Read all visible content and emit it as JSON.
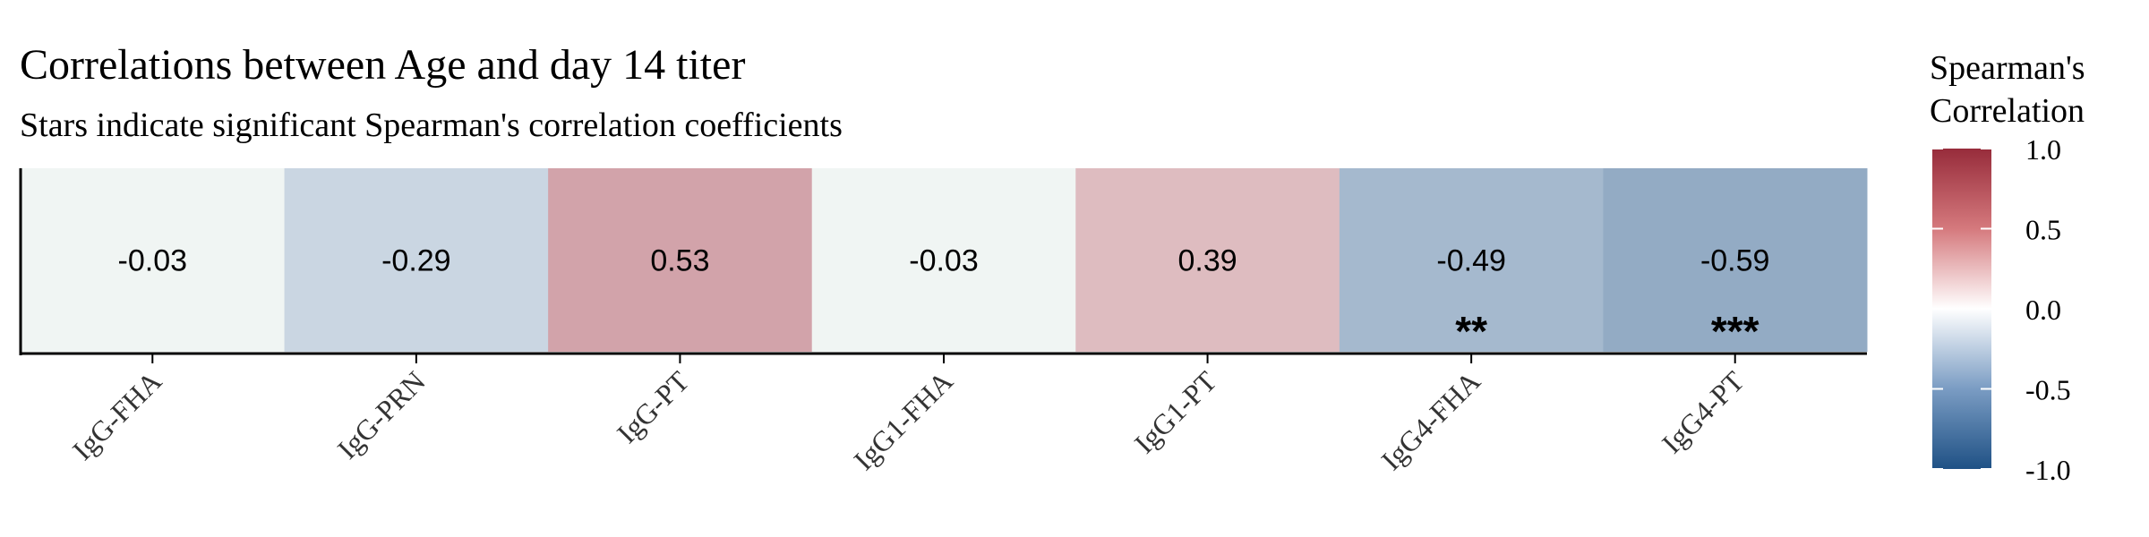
{
  "chart_data": {
    "type": "heatmap",
    "title": "Correlations between Age and day 14 titer",
    "subtitle": "Stars indicate significant Spearman's correlation coefficients",
    "categories": [
      "IgG-FHA",
      "IgG-PRN",
      "IgG-PT",
      "IgG1-FHA",
      "IgG1-PT",
      "IgG4-FHA",
      "IgG4-PT"
    ],
    "values": [
      -0.03,
      -0.29,
      0.53,
      -0.03,
      0.39,
      -0.49,
      -0.59
    ],
    "value_labels": [
      "-0.03",
      "-0.29",
      "0.53",
      "-0.03",
      "0.39",
      "-0.49",
      "-0.59"
    ],
    "significance": [
      "",
      "",
      "",
      "",
      "",
      "**",
      "***"
    ],
    "legend": {
      "title_line1": "Spearman's",
      "title_line2": "Correlation",
      "range": [
        -1,
        1
      ],
      "ticks": [
        1,
        0.5,
        0,
        -0.5,
        -1
      ],
      "tick_labels": [
        "1.0",
        "0.5",
        "0.0",
        "-0.5",
        "-1.0"
      ],
      "placement": "right"
    },
    "colors": {
      "negative": "#1f5185",
      "neutral": "#ffffff",
      "positive": "#972c3b",
      "tile_neutral_tint": "#f0f5f3"
    }
  }
}
